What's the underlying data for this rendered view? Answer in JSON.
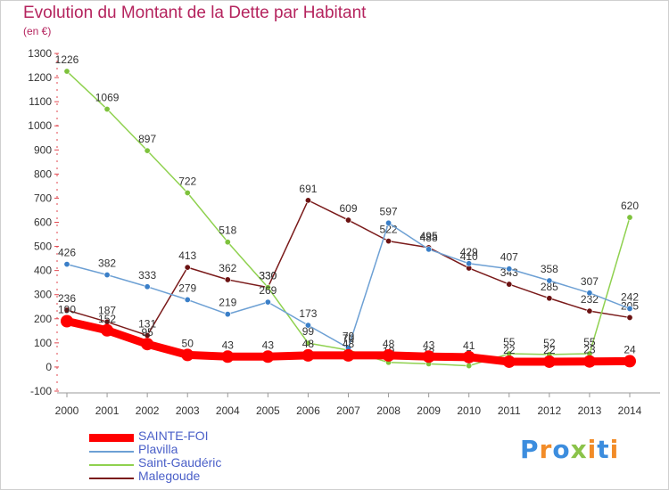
{
  "title": "Evolution du Montant de la Dette par Habitant",
  "subtitle": "(en €)",
  "logo": {
    "text": "Proxiti",
    "colors": [
      "#3c8dde",
      "#f28c28",
      "#3c8dde",
      "#8bc34a",
      "#f28c28",
      "#3c8dde",
      "#f28c28"
    ]
  },
  "chart_data": {
    "type": "line",
    "title": "Evolution du Montant de la Dette par Habitant",
    "ylabel": "(en €)",
    "xlabel": "",
    "categories": [
      "2000",
      "2001",
      "2002",
      "2003",
      "2004",
      "2005",
      "2006",
      "2007",
      "2008",
      "2009",
      "2010",
      "2011",
      "2012",
      "2013",
      "2014"
    ],
    "ylim": [
      -100,
      1300
    ],
    "yticks": [
      -100,
      0,
      100,
      200,
      300,
      400,
      500,
      600,
      700,
      800,
      900,
      1000,
      1100,
      1200,
      1300
    ],
    "grid": false,
    "legend_position": "bottom-left",
    "series": [
      {
        "name": "Malegoude",
        "color": "#7a1a1a",
        "dot": "#6b1212",
        "values": [
          236,
          187,
          131,
          413,
          362,
          330,
          691,
          609,
          522,
          495,
          410,
          343,
          285,
          232,
          205
        ],
        "labels": [
          "236",
          "187",
          "131",
          "413",
          "362",
          "330",
          "691",
          "609",
          "522",
          "495",
          "410",
          "343",
          "285",
          "232",
          "205"
        ]
      },
      {
        "name": "Saint-Gaudéric",
        "color": "#8fd14f",
        "dot": "#7ec23c",
        "values": [
          1226,
          1069,
          897,
          722,
          518,
          330,
          99,
          70,
          19,
          13,
          5,
          55,
          52,
          55,
          620
        ],
        "labels": [
          "1226",
          "1069",
          "897",
          "722",
          "518",
          "330",
          "99",
          "70",
          "19",
          "13",
          "5",
          "55",
          "52",
          "55",
          "620"
        ]
      },
      {
        "name": "Plavilla",
        "color": "#6da0d4",
        "dot": "#3a7fc8",
        "values": [
          426,
          382,
          333,
          279,
          219,
          269,
          173,
          79,
          597,
          488,
          429,
          407,
          358,
          307,
          242
        ],
        "labels": [
          "426",
          "382",
          "333",
          "279",
          "219",
          "269",
          "173",
          "79",
          "597",
          "488",
          "429",
          "407",
          "358",
          "307",
          "242"
        ]
      },
      {
        "name": "SAINTE-FOI",
        "color": "#ff0000",
        "dot": "#ff0000",
        "values": [
          190,
          152,
          95,
          50,
          43,
          43,
          48,
          48,
          48,
          43,
          41,
          22,
          22,
          23,
          24
        ],
        "labels": [
          "190",
          "152",
          "95",
          "50",
          "43",
          "43",
          "48",
          "48",
          "48",
          "43",
          "41",
          "22",
          "22",
          "23",
          "24"
        ]
      }
    ],
    "legend_order": [
      "SAINTE-FOI",
      "Plavilla",
      "Saint-Gaudéric",
      "Malegoude"
    ]
  }
}
